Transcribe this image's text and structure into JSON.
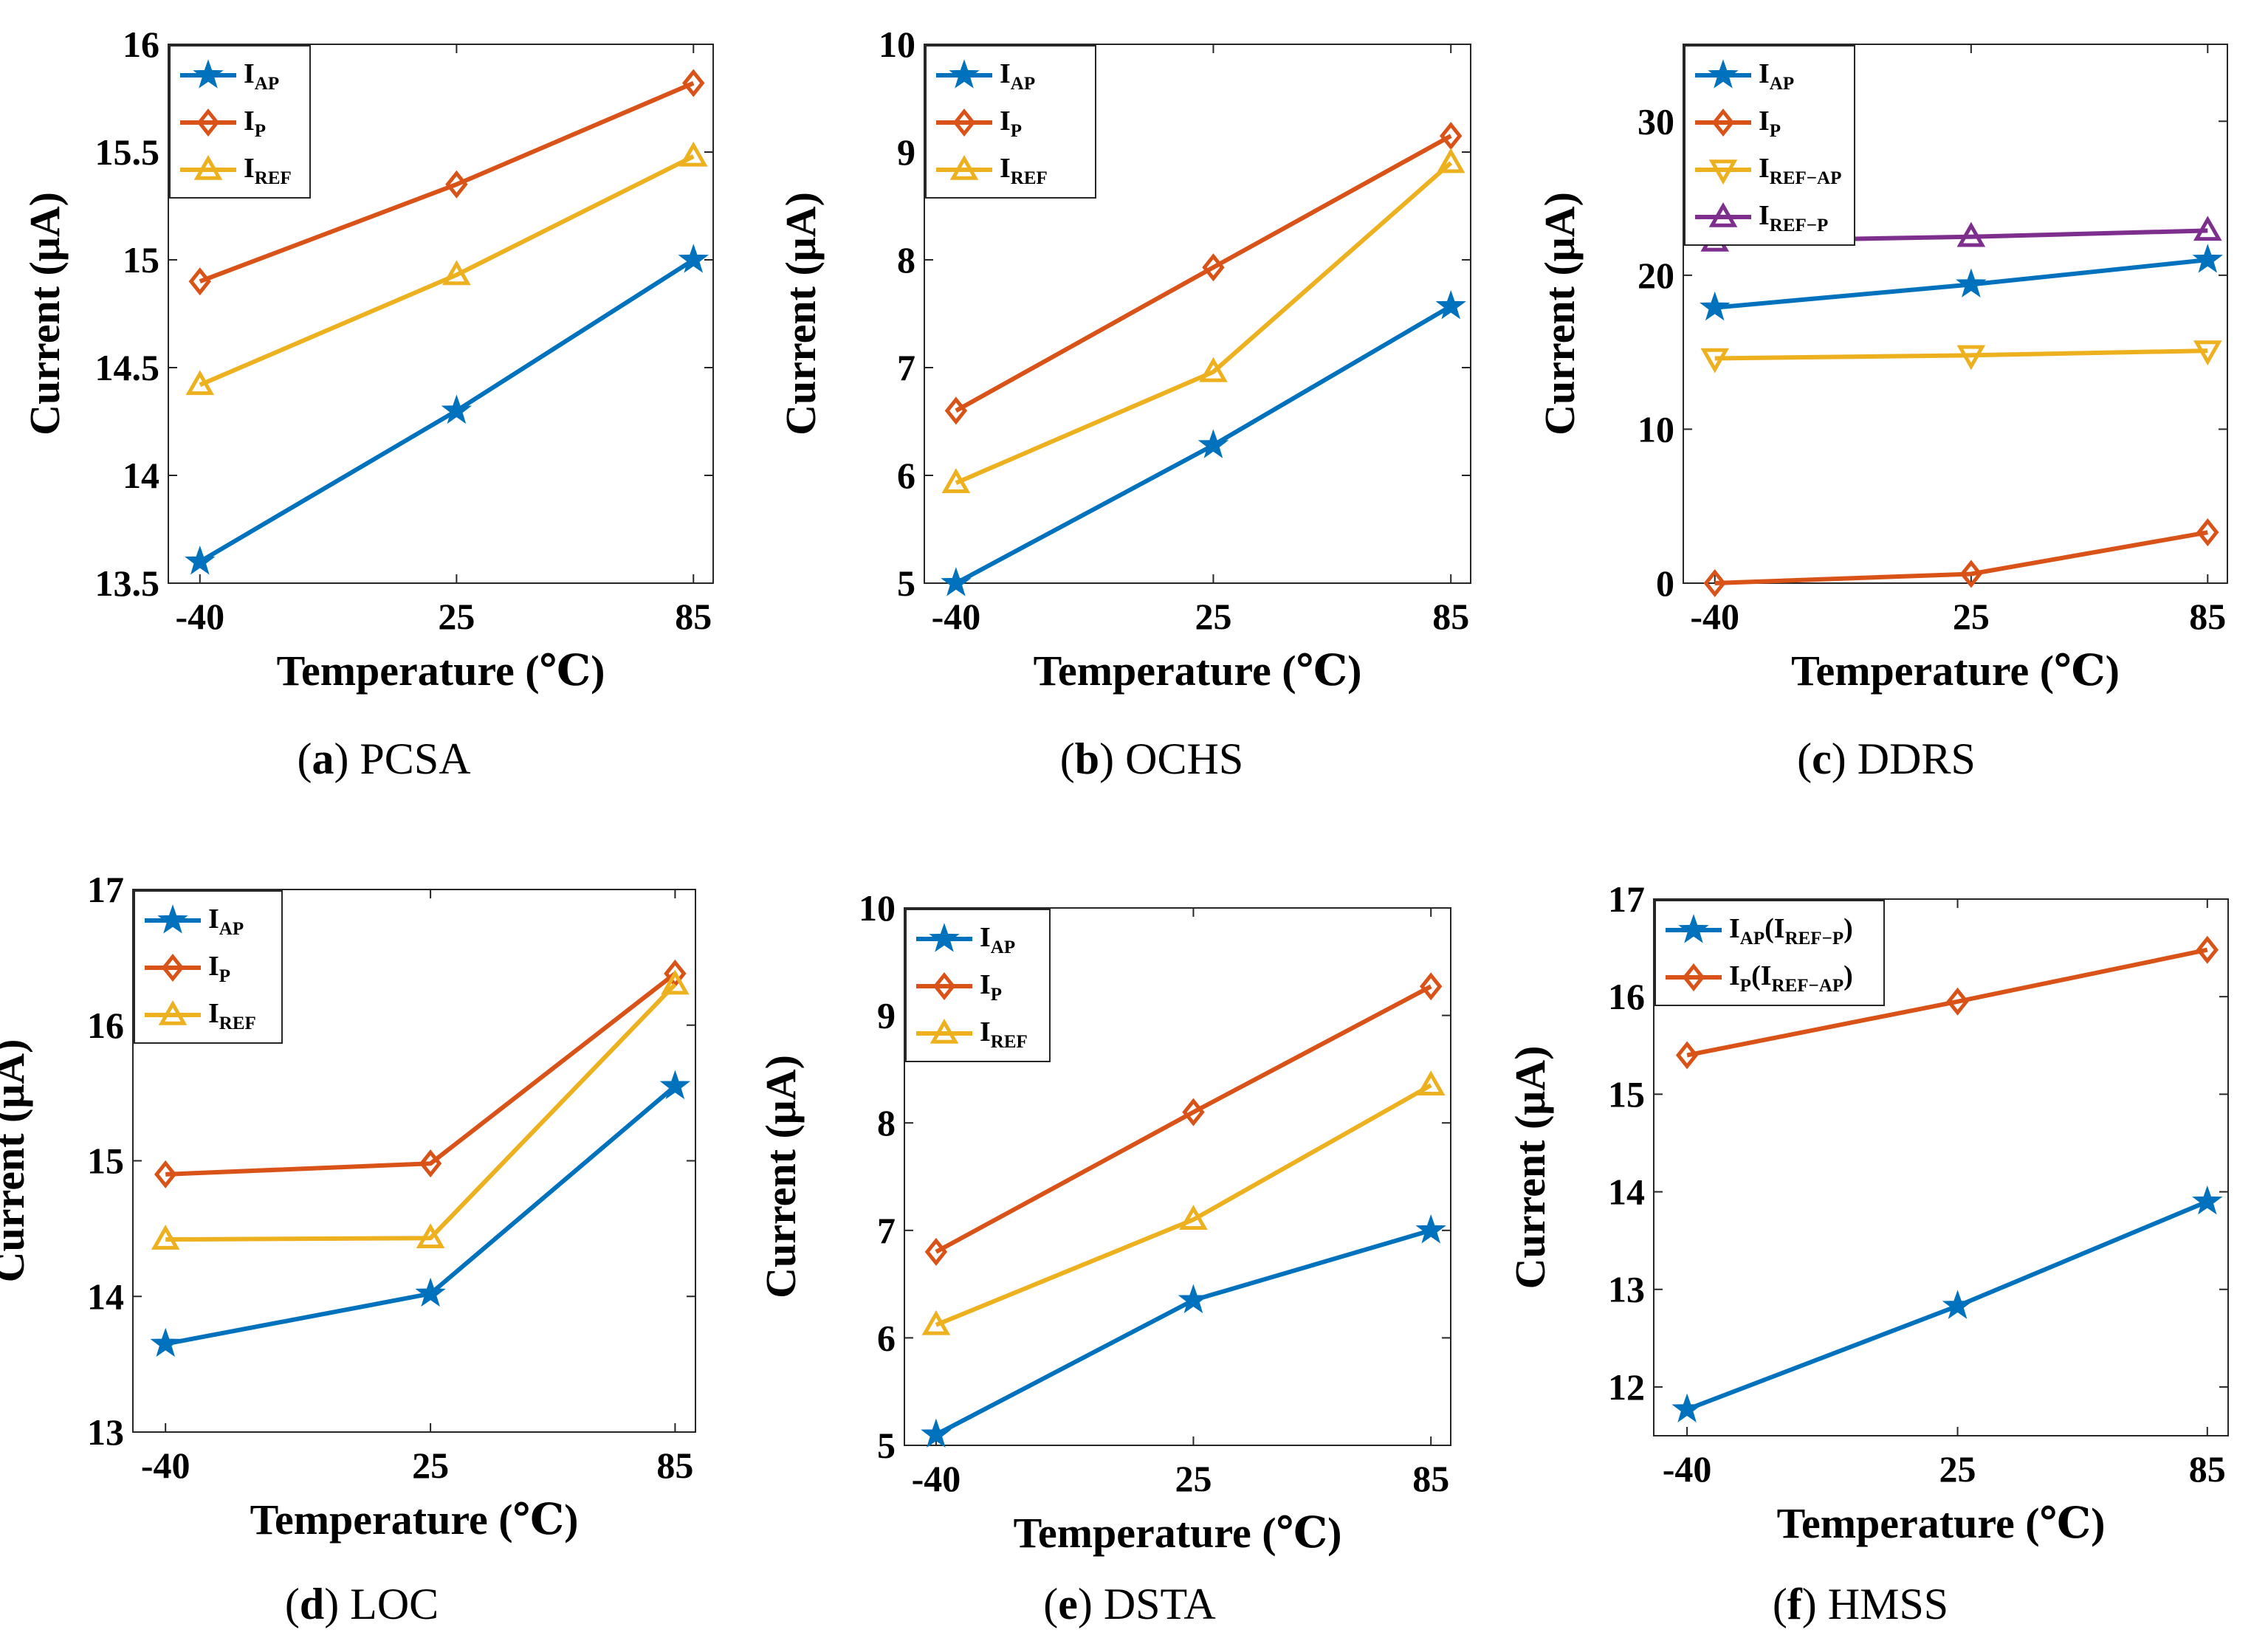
{
  "colors": {
    "blue": "#0072BD",
    "orange": "#D95319",
    "yellow": "#EDB120",
    "purple": "#7E2F8E"
  },
  "chart_data": [
    {
      "type": "line",
      "caption_letter": "(a)",
      "caption_name": " PCSA",
      "xlabel": "Temperature (℃)",
      "ylabel": "Current (μA)",
      "categories": [
        "-40",
        "25",
        "85"
      ],
      "x": [
        -40,
        25,
        85
      ],
      "xlim": [
        -48,
        90
      ],
      "ylim": [
        13.5,
        16
      ],
      "yticks": [
        13.5,
        14,
        14.5,
        15,
        15.5,
        16
      ],
      "yticklabels": [
        "13.5",
        "14",
        "14.5",
        "15",
        "15.5",
        "16"
      ],
      "legend_position": "top-left",
      "series": [
        {
          "name": "I",
          "sub": "AP",
          "color": "#0072BD",
          "marker": "star",
          "values": [
            13.6,
            14.3,
            15.0
          ]
        },
        {
          "name": "I",
          "sub": "P",
          "color": "#D95319",
          "marker": "diamond",
          "values": [
            14.9,
            15.35,
            15.82
          ]
        },
        {
          "name": "I",
          "sub": "REF",
          "color": "#EDB120",
          "marker": "triangle-up",
          "values": [
            14.42,
            14.93,
            15.48
          ]
        }
      ]
    },
    {
      "type": "line",
      "caption_letter": "(b)",
      "caption_name": " OCHS",
      "xlabel": "Temperature (℃)",
      "ylabel": "Current (μA)",
      "categories": [
        "-40",
        "25",
        "85"
      ],
      "x": [
        -40,
        25,
        85
      ],
      "xlim": [
        -48,
        90
      ],
      "ylim": [
        5,
        10
      ],
      "yticks": [
        5,
        6,
        7,
        8,
        9,
        10
      ],
      "yticklabels": [
        "5",
        "6",
        "7",
        "8",
        "9",
        "10"
      ],
      "legend_position": "top-left",
      "series": [
        {
          "name": "I",
          "sub": "AP",
          "color": "#0072BD",
          "marker": "star",
          "values": [
            5.0,
            6.28,
            7.57
          ]
        },
        {
          "name": "I",
          "sub": "P",
          "color": "#D95319",
          "marker": "diamond",
          "values": [
            6.6,
            7.93,
            9.15
          ]
        },
        {
          "name": "I",
          "sub": "REF",
          "color": "#EDB120",
          "marker": "triangle-up",
          "values": [
            5.93,
            6.96,
            8.9
          ]
        }
      ]
    },
    {
      "type": "line",
      "caption_letter": "(c)",
      "caption_name": " DDRS",
      "xlabel": "Temperature (℃)",
      "ylabel": "Current (μA)",
      "categories": [
        "-40",
        "25",
        "85"
      ],
      "x": [
        -40,
        25,
        85
      ],
      "xlim": [
        -48,
        90
      ],
      "ylim": [
        0,
        35
      ],
      "yticks": [
        0,
        10,
        20,
        30
      ],
      "yticklabels": [
        "0",
        "10",
        "20",
        "30"
      ],
      "legend_position": "top-left",
      "series": [
        {
          "name": "I",
          "sub": "AP",
          "color": "#0072BD",
          "marker": "star",
          "values": [
            17.9,
            19.4,
            21.0
          ]
        },
        {
          "name": "I",
          "sub": "P",
          "color": "#D95319",
          "marker": "diamond",
          "values": [
            0.0,
            0.6,
            3.3
          ]
        },
        {
          "name": "I",
          "sub": "REF−AP",
          "color": "#EDB120",
          "marker": "triangle-down",
          "values": [
            14.6,
            14.8,
            15.1
          ]
        },
        {
          "name": "I",
          "sub": "REF−P",
          "color": "#7E2F8E",
          "marker": "triangle-up",
          "values": [
            22.2,
            22.5,
            22.9
          ]
        }
      ]
    },
    {
      "type": "line",
      "caption_letter": "(d)",
      "caption_name": " LOC",
      "xlabel": "Temperature (℃)",
      "ylabel": "Current (μA)",
      "categories": [
        "-40",
        "25",
        "85"
      ],
      "x": [
        -40,
        25,
        85
      ],
      "xlim": [
        -48,
        90
      ],
      "ylim": [
        13,
        17
      ],
      "yticks": [
        13,
        14,
        15,
        16,
        17
      ],
      "yticklabels": [
        "13",
        "14",
        "15",
        "16",
        "17"
      ],
      "legend_position": "top-left",
      "series": [
        {
          "name": "I",
          "sub": "AP",
          "color": "#0072BD",
          "marker": "star",
          "values": [
            13.65,
            14.02,
            15.55
          ]
        },
        {
          "name": "I",
          "sub": "P",
          "color": "#D95319",
          "marker": "diamond",
          "values": [
            14.9,
            14.98,
            16.38
          ]
        },
        {
          "name": "I",
          "sub": "REF",
          "color": "#EDB120",
          "marker": "triangle-up",
          "values": [
            14.42,
            14.43,
            16.3
          ]
        }
      ]
    },
    {
      "type": "line",
      "caption_letter": "(e)",
      "caption_name": " DSTA",
      "xlabel": "Temperature (℃)",
      "ylabel": "Current (μA)",
      "categories": [
        "-40",
        "25",
        "85"
      ],
      "x": [
        -40,
        25,
        85
      ],
      "xlim": [
        -48,
        90
      ],
      "ylim": [
        5,
        10
      ],
      "yticks": [
        5,
        6,
        7,
        8,
        9,
        10
      ],
      "yticklabels": [
        "5",
        "6",
        "7",
        "8",
        "9",
        "10"
      ],
      "legend_position": "top-left",
      "series": [
        {
          "name": "I",
          "sub": "AP",
          "color": "#0072BD",
          "marker": "star",
          "values": [
            5.1,
            6.35,
            7.0
          ]
        },
        {
          "name": "I",
          "sub": "P",
          "color": "#D95319",
          "marker": "diamond",
          "values": [
            6.8,
            8.1,
            9.27
          ]
        },
        {
          "name": "I",
          "sub": "REF",
          "color": "#EDB120",
          "marker": "triangle-up",
          "values": [
            6.12,
            7.1,
            8.35
          ]
        }
      ]
    },
    {
      "type": "line",
      "caption_letter": "(f)",
      "caption_name": " HMSS",
      "xlabel": "Temperature (℃)",
      "ylabel": "Current (μA)",
      "categories": [
        "-40",
        "25",
        "85"
      ],
      "x": [
        -40,
        25,
        85
      ],
      "xlim": [
        -48,
        90
      ],
      "ylim": [
        11.5,
        17
      ],
      "yticks": [
        12,
        13,
        14,
        15,
        16,
        17
      ],
      "yticklabels": [
        "12",
        "13",
        "14",
        "15",
        "16",
        "17"
      ],
      "legend_position": "top-left",
      "series": [
        {
          "name": "I",
          "sub": "AP",
          "paren_sub": "REF−P",
          "color": "#0072BD",
          "marker": "star",
          "values": [
            11.77,
            12.83,
            13.9
          ]
        },
        {
          "name": "I",
          "sub": "P",
          "paren_sub": "REF−AP",
          "color": "#D95319",
          "marker": "diamond",
          "values": [
            15.4,
            15.95,
            16.48
          ]
        }
      ]
    }
  ]
}
